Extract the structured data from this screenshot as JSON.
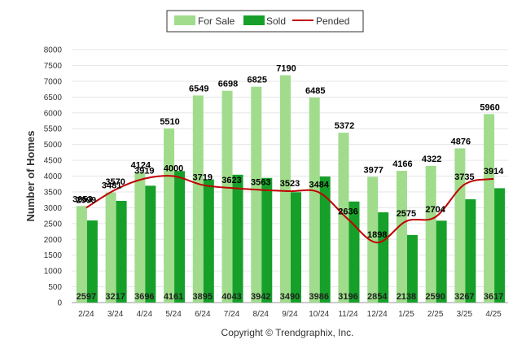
{
  "chart_data": {
    "type": "bar",
    "categories": [
      "2/24",
      "3/24",
      "4/24",
      "5/24",
      "6/24",
      "7/24",
      "8/24",
      "9/24",
      "10/24",
      "11/24",
      "12/24",
      "1/25",
      "2/25",
      "3/25",
      "4/25"
    ],
    "series": [
      {
        "name": "For Sale",
        "type": "bar",
        "color": "#a0dc8c",
        "values": [
          3053,
          3481,
          4124,
          5510,
          6549,
          6698,
          6825,
          7190,
          6485,
          5372,
          3977,
          4166,
          4322,
          4876,
          5960
        ]
      },
      {
        "name": "Sold",
        "type": "bar",
        "color": "#16a02a",
        "values": [
          2597,
          3217,
          3696,
          4161,
          3895,
          4043,
          3942,
          3490,
          3986,
          3196,
          2854,
          2138,
          2590,
          3267,
          3617
        ]
      },
      {
        "name": "Pended",
        "type": "line",
        "color": "#c00000",
        "values": [
          2999,
          3570,
          3919,
          4000,
          3719,
          3623,
          3563,
          3523,
          3484,
          2636,
          1898,
          2575,
          2704,
          3735,
          3914
        ]
      }
    ],
    "ylabel": "Number of Homes",
    "xlabel": "",
    "ylim": [
      0,
      8000
    ],
    "yticks": [
      0,
      500,
      1000,
      1500,
      2000,
      2500,
      3000,
      3500,
      4000,
      4500,
      5000,
      5500,
      6000,
      6500,
      7000,
      7500,
      8000
    ],
    "grid": true,
    "legend_position": "top"
  },
  "footer": "Copyright © Trendgraphix, Inc."
}
